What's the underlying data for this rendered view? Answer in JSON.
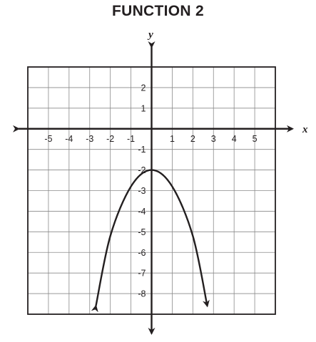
{
  "title": "FUNCTION 2",
  "chart_data": {
    "type": "line",
    "title": "FUNCTION 2",
    "xlabel": "x",
    "ylabel": "y",
    "xlim": [
      -6,
      6
    ],
    "ylim": [
      -9,
      3
    ],
    "grid": true,
    "x_ticks": [
      -5,
      -4,
      -3,
      -2,
      -1,
      1,
      2,
      3,
      4,
      5
    ],
    "y_ticks": [
      2,
      1,
      -1,
      -2,
      -3,
      -4,
      -5,
      -6,
      -7,
      -8
    ],
    "series": [
      {
        "x": [
          -2.7,
          -2.0,
          -1.0,
          0.0,
          1.0,
          2.0,
          2.7
        ],
        "y": [
          -8.6,
          -5.2,
          -2.8,
          -2.0,
          -2.8,
          -5.2,
          -8.6
        ],
        "arrows_at_ends": true,
        "color": "#231f20"
      }
    ]
  }
}
